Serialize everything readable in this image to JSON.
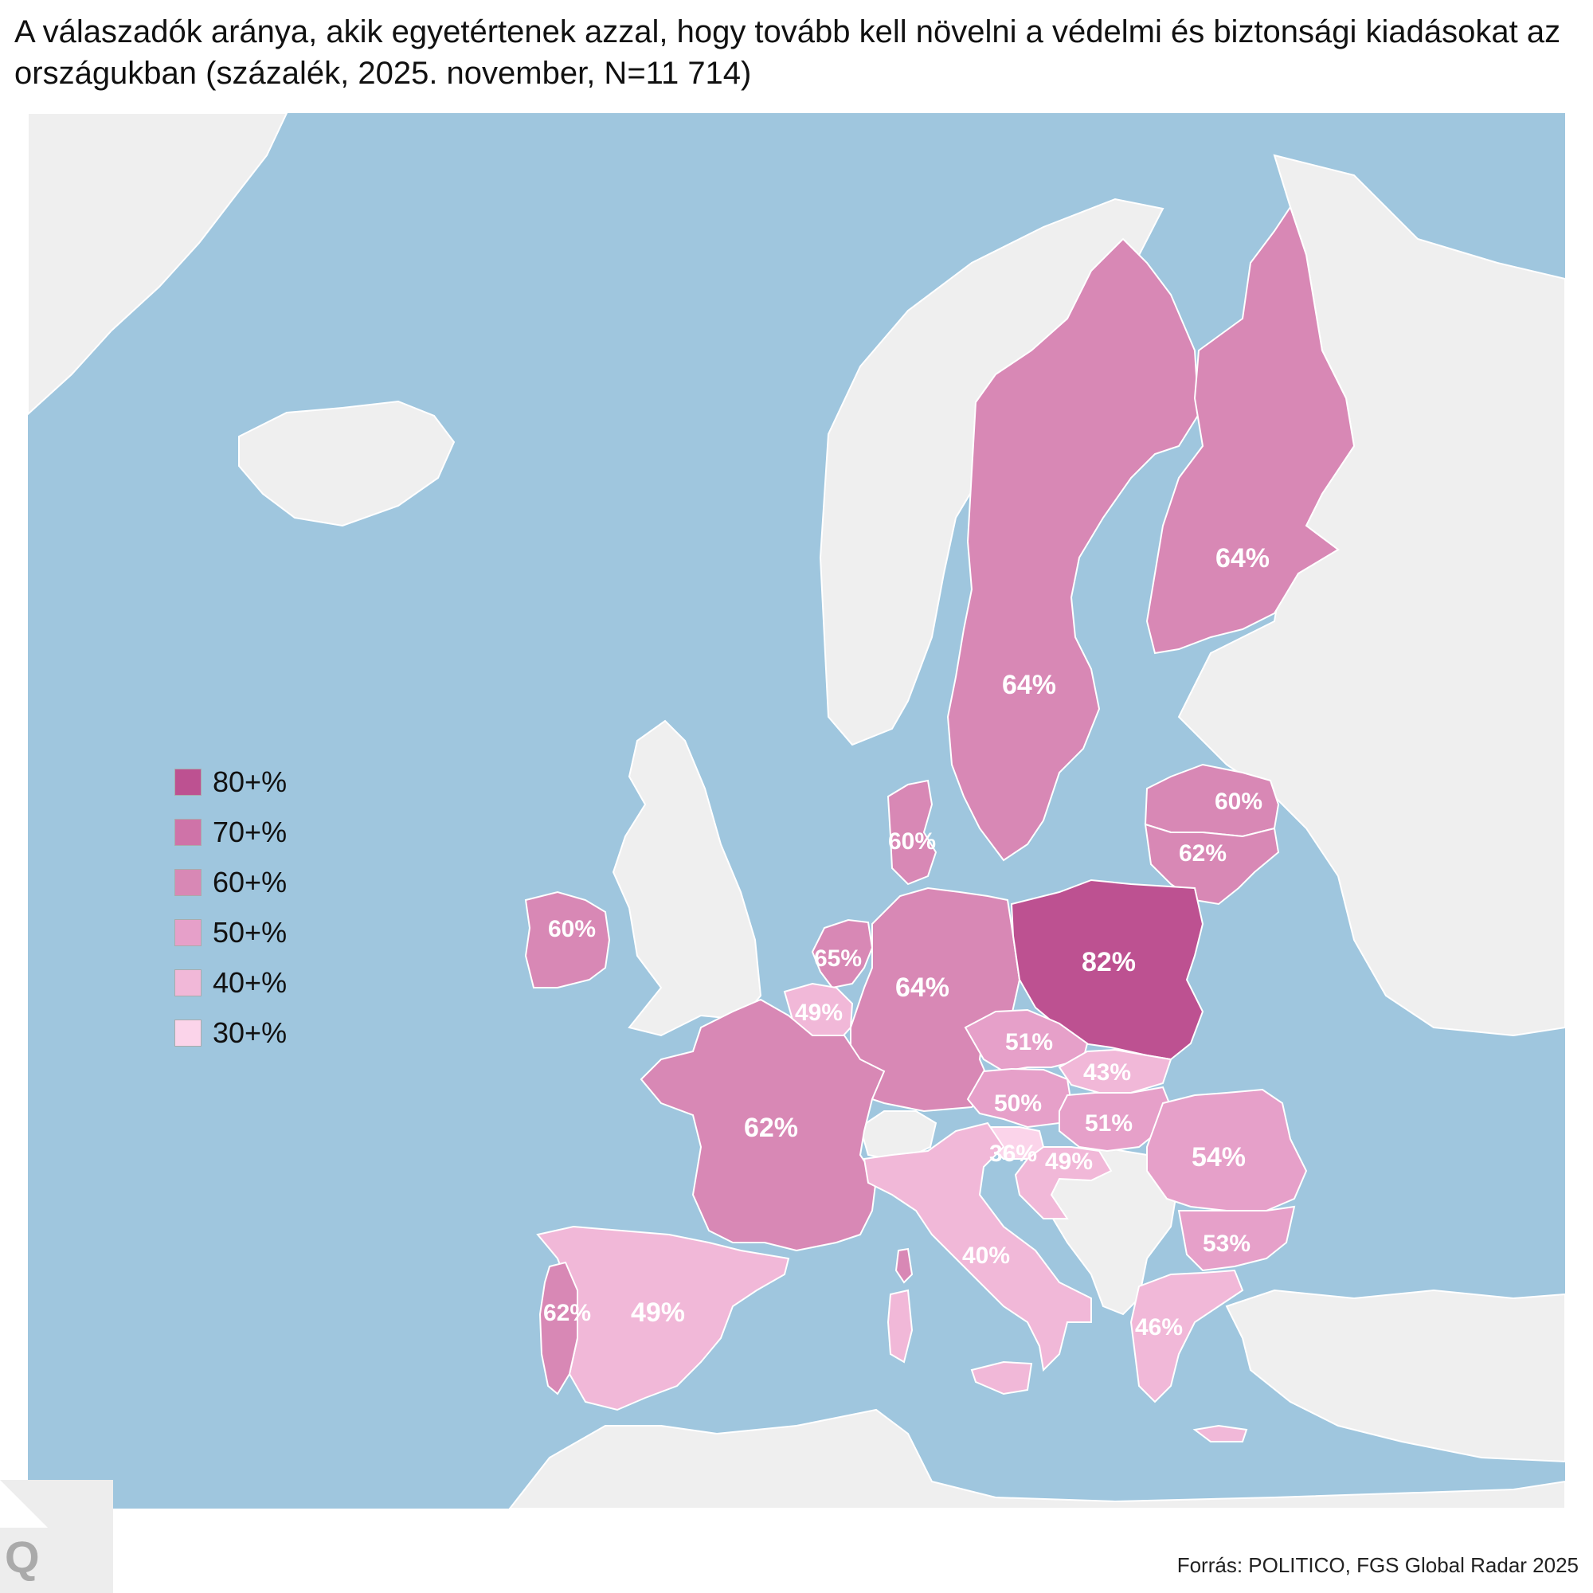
{
  "title": "A válaszadók aránya, akik egyetértenek azzal, hogy tovább kell növelni a védelmi és biztonsági kiadásokat az országukban (százalék, 2025. november, N=11 714)",
  "source": "Forrás: POLITICO, FGS Global Radar 2025",
  "logo_letter": "Q",
  "colors": {
    "sea": "#9fc6de",
    "land": "#efefef",
    "b80": "#bd5191",
    "b70": "#cf73a8",
    "b60": "#d888b5",
    "b50": "#e6a0c9",
    "b40": "#f1b8d8",
    "b30": "#fbd4ea"
  },
  "legend": [
    {
      "label": "80+%",
      "color": "#bd5191"
    },
    {
      "label": "70+%",
      "color": "#cf73a8"
    },
    {
      "label": "60+%",
      "color": "#d888b5"
    },
    {
      "label": "50+%",
      "color": "#e6a0c9"
    },
    {
      "label": "40+%",
      "color": "#f1b8d8"
    },
    {
      "label": "30+%",
      "color": "#fbd4ea"
    }
  ],
  "values": {
    "sweden": "64%",
    "finland": "64%",
    "latvia": "60%",
    "lithuania": "62%",
    "denmark": "60%",
    "ireland": "60%",
    "netherlands": "65%",
    "belgium": "49%",
    "germany": "64%",
    "poland": "82%",
    "czechia": "51%",
    "slovakia": "43%",
    "austria": "50%",
    "hungary": "51%",
    "slovenia": "36%",
    "croatia": "49%",
    "romania": "54%",
    "bulgaria": "53%",
    "greece": "46%",
    "france": "62%",
    "italy": "40%",
    "spain": "49%",
    "portugal": "62%"
  }
}
